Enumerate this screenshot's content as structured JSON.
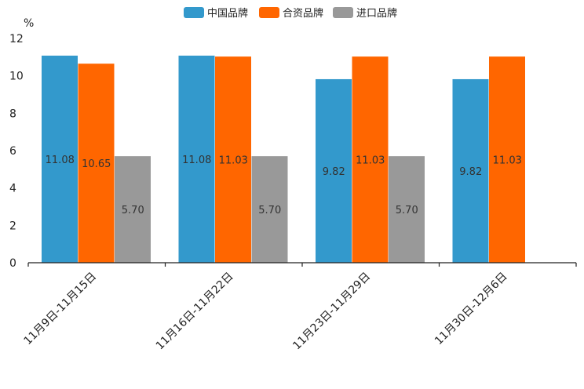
{
  "chart_data": {
    "type": "bar",
    "ylabel": "%",
    "ylim": [
      0,
      12
    ],
    "yticks": [
      "0",
      "2",
      "4",
      "6",
      "8",
      "10",
      "12"
    ],
    "categories": [
      "11月9日-11月15日",
      "11月16日-11月22日",
      "11月23日-11月29日",
      "11月30日-12月6日"
    ],
    "series": [
      {
        "name": "中国品牌",
        "color": "#3399cc",
        "values": [
          11.08,
          11.08,
          9.82,
          9.82
        ],
        "labels": [
          "11.08",
          "11.08",
          "9.82",
          "9.82"
        ]
      },
      {
        "name": "合资品牌",
        "color": "#ff6600",
        "values": [
          10.65,
          11.03,
          11.03,
          11.03
        ],
        "labels": [
          "10.65",
          "11.03",
          "11.03",
          "11.03"
        ]
      },
      {
        "name": "进口品牌",
        "color": "#999999",
        "values": [
          5.7,
          5.7,
          5.7,
          null
        ],
        "labels": [
          "5.70",
          "5.70",
          "5.70",
          null
        ]
      }
    ],
    "legend_position": "top-center"
  }
}
